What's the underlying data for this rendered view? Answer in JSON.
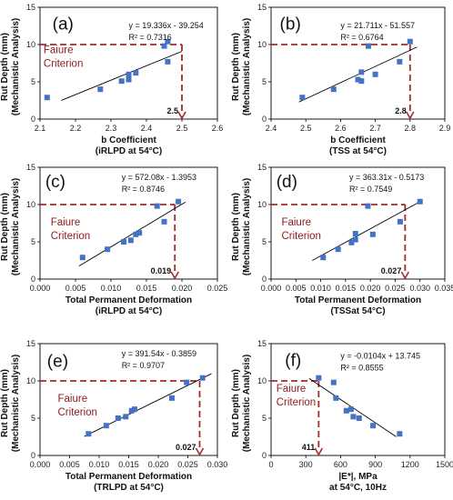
{
  "colors": {
    "points": "#4472c4",
    "criterion": "#a52a2a",
    "fit": "#000000",
    "frame": "#000000"
  },
  "chart_data": [
    {
      "type": "scatter",
      "panel_label": "(a)",
      "equation": "y = 19.336x - 39.254",
      "r2": "R² = 0.7316",
      "criterion_label": [
        "Faiure",
        "Criterion"
      ],
      "threshold_label": "2.5",
      "criterion_y": 10,
      "threshold_x": 2.5,
      "xlabel": [
        "b Coefficient",
        "(iRLPD at 54°C)"
      ],
      "ylabel": [
        "Rut Depth (mm)",
        "(Mechanistic Analysis)"
      ],
      "xlim": [
        2.1,
        2.6
      ],
      "ylim": [
        0,
        15
      ],
      "xticks": [
        "2.1",
        "2.2",
        "2.3",
        "2.4",
        "2.5",
        "2.6"
      ],
      "yticks": [
        "0",
        "5",
        "10",
        "15"
      ],
      "fit": {
        "slope": 19.336,
        "intercept": -39.254,
        "x_range": [
          2.16,
          2.5
        ]
      },
      "x": [
        2.12,
        2.27,
        2.33,
        2.35,
        2.35,
        2.37,
        2.45,
        2.46,
        2.46
      ],
      "y": [
        2.9,
        4.0,
        5.1,
        5.3,
        6.0,
        6.2,
        9.8,
        7.7,
        10.4
      ]
    },
    {
      "type": "scatter",
      "panel_label": "(b)",
      "equation": "y = 21.711x - 51.557",
      "r2": "R² = 0.6764",
      "criterion_label": [],
      "threshold_label": "2.8",
      "criterion_y": 10,
      "threshold_x": 2.8,
      "xlabel": [
        "b Coefficient",
        "(TSS at 54°C)"
      ],
      "ylabel": [
        "Rut Depth (mm)",
        "(Mechanistic Analysis)"
      ],
      "xlim": [
        2.4,
        2.9
      ],
      "ylim": [
        0,
        15
      ],
      "xticks": [
        "2.4",
        "2.5",
        "2.6",
        "2.7",
        "2.8",
        "2.9"
      ],
      "yticks": [
        "0",
        "5",
        "10",
        "15"
      ],
      "fit": {
        "slope": 21.711,
        "intercept": -51.557,
        "x_range": [
          2.48,
          2.82
        ]
      },
      "x": [
        2.49,
        2.58,
        2.65,
        2.66,
        2.66,
        2.68,
        2.7,
        2.77,
        2.8
      ],
      "y": [
        2.9,
        4.0,
        5.3,
        5.1,
        6.3,
        9.8,
        6.0,
        7.7,
        10.4
      ]
    },
    {
      "type": "scatter",
      "panel_label": "(c)",
      "equation": "y = 572.08x - 1.3953",
      "r2": "R² = 0.8746",
      "criterion_label": [
        "Faiure",
        "Criterion"
      ],
      "threshold_label": "0.019",
      "criterion_y": 10,
      "threshold_x": 0.019,
      "xlabel": [
        "Total Permanent Deformation",
        "(iRLPD at 54°C)"
      ],
      "ylabel": [
        "Rut Depth (mm)",
        "(Mechanistic Analysis)"
      ],
      "xlim": [
        0,
        0.025
      ],
      "ylim": [
        0,
        15
      ],
      "xticks": [
        "0.000",
        "0.005",
        "0.010",
        "0.015",
        "0.020",
        "0.025"
      ],
      "yticks": [
        "0",
        "5",
        "10",
        "15"
      ],
      "fit": {
        "slope": 572.08,
        "intercept": -1.3953,
        "x_range": [
          0.0055,
          0.0205
        ]
      },
      "x": [
        0.006,
        0.0095,
        0.0118,
        0.0128,
        0.0135,
        0.014,
        0.0165,
        0.0175,
        0.0195
      ],
      "y": [
        2.9,
        4.0,
        5.0,
        5.2,
        6.0,
        6.2,
        9.8,
        7.7,
        10.4
      ]
    },
    {
      "type": "scatter",
      "panel_label": "(d)",
      "equation": "y = 363.31x - 0.5173",
      "r2": "R² = 0.7549",
      "criterion_label": [
        "Faiure",
        "Criterion"
      ],
      "threshold_label": "0.027",
      "criterion_y": 10,
      "threshold_x": 0.027,
      "xlabel": [
        "Total Permanent Deformation",
        "(TSSat 54°C)"
      ],
      "ylabel": [
        "Rut Depth (mm)",
        "(Mechanistic Analysis)"
      ],
      "xlim": [
        0,
        0.035
      ],
      "ylim": [
        0,
        15
      ],
      "xticks": [
        "0.000",
        "0.005",
        "0.010",
        "0.015",
        "0.020",
        "0.025",
        "0.030",
        "0.035"
      ],
      "yticks": [
        "0",
        "5",
        "10",
        "15"
      ],
      "fit": {
        "slope": 363.31,
        "intercept": -0.5173,
        "x_range": [
          0.0083,
          0.0305
        ]
      },
      "x": [
        0.0105,
        0.0135,
        0.0162,
        0.017,
        0.017,
        0.0195,
        0.0205,
        0.026,
        0.03
      ],
      "y": [
        2.9,
        4.0,
        4.9,
        5.3,
        6.1,
        9.8,
        6.0,
        7.7,
        10.4
      ]
    },
    {
      "type": "scatter",
      "panel_label": "(e)",
      "equation": "y = 391.54x - 0.3859",
      "r2": "R² = 0.9707",
      "criterion_label": [
        "Faiure",
        "Criterion"
      ],
      "threshold_label": "0.027",
      "criterion_y": 10,
      "threshold_x": 0.027,
      "xlabel": [
        "Total Permanent Deformation",
        "(TRLPD at 54°C)"
      ],
      "ylabel": [
        "Rut Depth (mm)",
        "(Mechanistic Analysis)"
      ],
      "xlim": [
        0,
        0.03
      ],
      "ylim": [
        0,
        15
      ],
      "xticks": [
        "0.000",
        "0.005",
        "0.010",
        "0.015",
        "0.020",
        "0.025",
        "0.030"
      ],
      "yticks": [
        "0",
        "5",
        "10",
        "15"
      ],
      "fit": {
        "slope": 391.54,
        "intercept": -0.3859,
        "x_range": [
          0.0075,
          0.029
        ]
      },
      "x": [
        0.0082,
        0.0112,
        0.0132,
        0.0145,
        0.0155,
        0.016,
        0.0223,
        0.0248,
        0.0275
      ],
      "y": [
        2.9,
        4.0,
        5.0,
        5.2,
        6.0,
        6.2,
        7.7,
        9.8,
        10.4
      ]
    },
    {
      "type": "scatter",
      "panel_label": "(f)",
      "equation": "y = -0.0104x + 13.745",
      "r2": "R² = 0.8555",
      "criterion_label": [
        "Faiure",
        "Criterion"
      ],
      "threshold_label": "411",
      "criterion_y": 10,
      "threshold_x": 411,
      "xlabel": [
        "|E*|, MPa",
        "at 54°C, 10Hz"
      ],
      "ylabel": [
        "Rut Depth (mm)",
        "(Mechanistic Analysis)"
      ],
      "xlim": [
        0,
        1500
      ],
      "ylim": [
        0,
        15
      ],
      "xticks": [
        "0",
        "300",
        "600",
        "900",
        "1200",
        "1500"
      ],
      "yticks": [
        "0",
        "5",
        "10",
        "15"
      ],
      "fit": {
        "slope": -0.0104,
        "intercept": 13.745,
        "x_range": [
          330,
          1080
        ]
      },
      "x": [
        411,
        540,
        560,
        650,
        690,
        710,
        760,
        880,
        1110
      ],
      "y": [
        10.4,
        9.8,
        7.7,
        6.0,
        6.2,
        5.2,
        5.0,
        4.0,
        2.9
      ]
    }
  ]
}
